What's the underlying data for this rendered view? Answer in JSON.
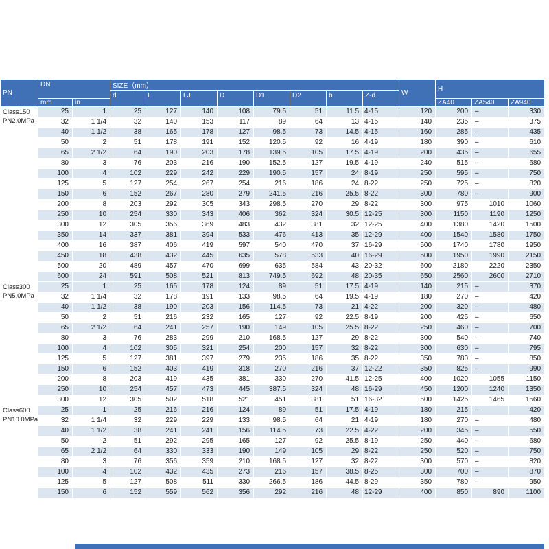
{
  "colors": {
    "header_blue": "#4070b5",
    "stripe": "#dce6f1",
    "body_text": "#1c1c1c",
    "background": "#ffffff"
  },
  "table": {
    "header": {
      "pn": "PN",
      "dn": "DN",
      "size": "SIZE（mm）",
      "mm": "mm",
      "in": "in",
      "size_cols": [
        "d",
        "L",
        "LJ",
        "D",
        "D1",
        "D2",
        "b",
        "Z-d"
      ],
      "w": "W",
      "h": "H",
      "h_cols": [
        "ZA40",
        "ZA540",
        "ZA940"
      ]
    },
    "column_keys": [
      "dn-mm",
      "dn-in",
      "d",
      "l",
      "lj",
      "d-flange",
      "d1",
      "d2",
      "b",
      "z-d",
      "w",
      "za40",
      "za540",
      "za940"
    ],
    "sections": [
      {
        "label1": "Class150",
        "label2": "PN2.0MPa",
        "rows": [
          [
            "25",
            "1",
            "25",
            "127",
            "140",
            "108",
            "79.5",
            "51",
            "11.5",
            "4-15",
            "120",
            "200",
            "–",
            "330"
          ],
          [
            "32",
            "1 1/4",
            "32",
            "140",
            "153",
            "117",
            "89",
            "64",
            "13",
            "4-15",
            "140",
            "235",
            "–",
            "375"
          ],
          [
            "40",
            "1 1/2",
            "38",
            "165",
            "178",
            "127",
            "98.5",
            "73",
            "14.5",
            "4-15",
            "160",
            "285",
            "–",
            "435"
          ],
          [
            "50",
            "2",
            "51",
            "178",
            "191",
            "152",
            "120.5",
            "92",
            "16",
            "4-19",
            "180",
            "390",
            "–",
            "610"
          ],
          [
            "65",
            "2 1/2",
            "64",
            "190",
            "203",
            "178",
            "139.5",
            "105",
            "17.5",
            "4-19",
            "200",
            "435",
            "–",
            "655"
          ],
          [
            "80",
            "3",
            "76",
            "203",
            "216",
            "190",
            "152.5",
            "127",
            "19.5",
            "4-19",
            "240",
            "515",
            "–",
            "680"
          ],
          [
            "100",
            "4",
            "102",
            "229",
            "242",
            "229",
            "190.5",
            "157",
            "24",
            "8-19",
            "250",
            "595",
            "–",
            "750"
          ],
          [
            "125",
            "5",
            "127",
            "254",
            "267",
            "254",
            "216",
            "186",
            "24",
            "8-22",
            "250",
            "725",
            "–",
            "820"
          ],
          [
            "150",
            "6",
            "152",
            "267",
            "280",
            "279",
            "241.5",
            "216",
            "25.5",
            "8-22",
            "300",
            "780",
            "–",
            "900"
          ],
          [
            "200",
            "8",
            "203",
            "292",
            "305",
            "343",
            "298.5",
            "270",
            "29",
            "8-22",
            "300",
            "975",
            "1010",
            "1060"
          ],
          [
            "250",
            "10",
            "254",
            "330",
            "343",
            "406",
            "362",
            "324",
            "30.5",
            "12-25",
            "300",
            "1150",
            "1190",
            "1250"
          ],
          [
            "300",
            "12",
            "305",
            "356",
            "369",
            "483",
            "432",
            "381",
            "32",
            "12-25",
            "400",
            "1380",
            "1420",
            "1500"
          ],
          [
            "350",
            "14",
            "337",
            "381",
            "394",
            "533",
            "476",
            "413",
            "35",
            "12-29",
            "400",
            "1540",
            "1580",
            "1750"
          ],
          [
            "400",
            "16",
            "387",
            "406",
            "419",
            "597",
            "540",
            "470",
            "37",
            "16-29",
            "500",
            "1740",
            "1780",
            "1950"
          ],
          [
            "450",
            "18",
            "438",
            "432",
            "445",
            "635",
            "578",
            "533",
            "40",
            "16-29",
            "500",
            "1950",
            "1990",
            "2150"
          ],
          [
            "500",
            "20",
            "489",
            "457",
            "470",
            "699",
            "635",
            "584",
            "43",
            "20-32",
            "600",
            "2180",
            "2220",
            "2350"
          ],
          [
            "600",
            "24",
            "591",
            "508",
            "521",
            "813",
            "749.5",
            "692",
            "48",
            "20-35",
            "650",
            "2560",
            "2600",
            "2710"
          ]
        ]
      },
      {
        "label1": "Class300",
        "label2": "PN5.0MPa",
        "rows": [
          [
            "25",
            "1",
            "25",
            "165",
            "178",
            "124",
            "89",
            "51",
            "17.5",
            "4-19",
            "140",
            "215",
            "–",
            "370"
          ],
          [
            "32",
            "1 1/4",
            "32",
            "178",
            "191",
            "133",
            "98.5",
            "64",
            "19.5",
            "4-19",
            "180",
            "270",
            "–",
            "420"
          ],
          [
            "40",
            "1 1/2",
            "38",
            "190",
            "203",
            "156",
            "114.5",
            "73",
            "21",
            "4-22",
            "200",
            "320",
            "–",
            "480"
          ],
          [
            "50",
            "2",
            "51",
            "216",
            "232",
            "165",
            "127",
            "92",
            "22.5",
            "8-19",
            "200",
            "425",
            "–",
            "650"
          ],
          [
            "65",
            "2 1/2",
            "64",
            "241",
            "257",
            "190",
            "149",
            "105",
            "25.5",
            "8-22",
            "250",
            "460",
            "–",
            "700"
          ],
          [
            "80",
            "3",
            "76",
            "283",
            "299",
            "210",
            "168.5",
            "127",
            "29",
            "8-22",
            "300",
            "540",
            "–",
            "740"
          ],
          [
            "100",
            "4",
            "102",
            "305",
            "321",
            "254",
            "200",
            "157",
            "32",
            "8-22",
            "300",
            "630",
            "–",
            "795"
          ],
          [
            "125",
            "5",
            "127",
            "381",
            "397",
            "279",
            "235",
            "186",
            "35",
            "8-22",
            "350",
            "780",
            "–",
            "850"
          ],
          [
            "150",
            "6",
            "152",
            "403",
            "419",
            "318",
            "270",
            "216",
            "37",
            "12-22",
            "350",
            "825",
            "–",
            "990"
          ],
          [
            "200",
            "8",
            "203",
            "419",
            "435",
            "381",
            "330",
            "270",
            "41.5",
            "12-25",
            "400",
            "1020",
            "1055",
            "1150"
          ],
          [
            "250",
            "10",
            "254",
            "457",
            "473",
            "445",
            "387.5",
            "324",
            "48",
            "16-29",
            "450",
            "1200",
            "1240",
            "1350"
          ],
          [
            "300",
            "12",
            "305",
            "502",
            "518",
            "521",
            "451",
            "381",
            "51",
            "16-32",
            "500",
            "1425",
            "1465",
            "1560"
          ]
        ]
      },
      {
        "label1": "Class600",
        "label2": "PN10.0MPa",
        "rows": [
          [
            "25",
            "1",
            "25",
            "216",
            "216",
            "124",
            "89",
            "51",
            "17.5",
            "4-19",
            "180",
            "215",
            "–",
            "420"
          ],
          [
            "32",
            "1 1/4",
            "32",
            "229",
            "229",
            "133",
            "98.5",
            "64",
            "21",
            "4-19",
            "180",
            "270",
            "–",
            "480"
          ],
          [
            "40",
            "1 1/2",
            "38",
            "241",
            "241",
            "156",
            "114.5",
            "73",
            "22.5",
            "4-22",
            "200",
            "345",
            "–",
            "550"
          ],
          [
            "50",
            "2",
            "51",
            "292",
            "295",
            "165",
            "127",
            "92",
            "25.5",
            "8-19",
            "250",
            "440",
            "–",
            "680"
          ],
          [
            "65",
            "2 1/2",
            "64",
            "330",
            "333",
            "190",
            "149",
            "105",
            "29",
            "8-22",
            "250",
            "520",
            "–",
            "750"
          ],
          [
            "80",
            "3",
            "76",
            "356",
            "359",
            "210",
            "168.5",
            "127",
            "32",
            "8-22",
            "300",
            "570",
            "–",
            "820"
          ],
          [
            "100",
            "4",
            "102",
            "432",
            "435",
            "273",
            "216",
            "157",
            "38.5",
            "8-25",
            "300",
            "700",
            "–",
            "870"
          ],
          [
            "125",
            "5",
            "127",
            "508",
            "511",
            "330",
            "266.5",
            "186",
            "44.5",
            "8-29",
            "350",
            "780",
            "–",
            "950"
          ],
          [
            "150",
            "6",
            "152",
            "559",
            "562",
            "356",
            "292",
            "216",
            "48",
            "12-29",
            "400",
            "850",
            "890",
            "1100"
          ]
        ]
      }
    ]
  }
}
